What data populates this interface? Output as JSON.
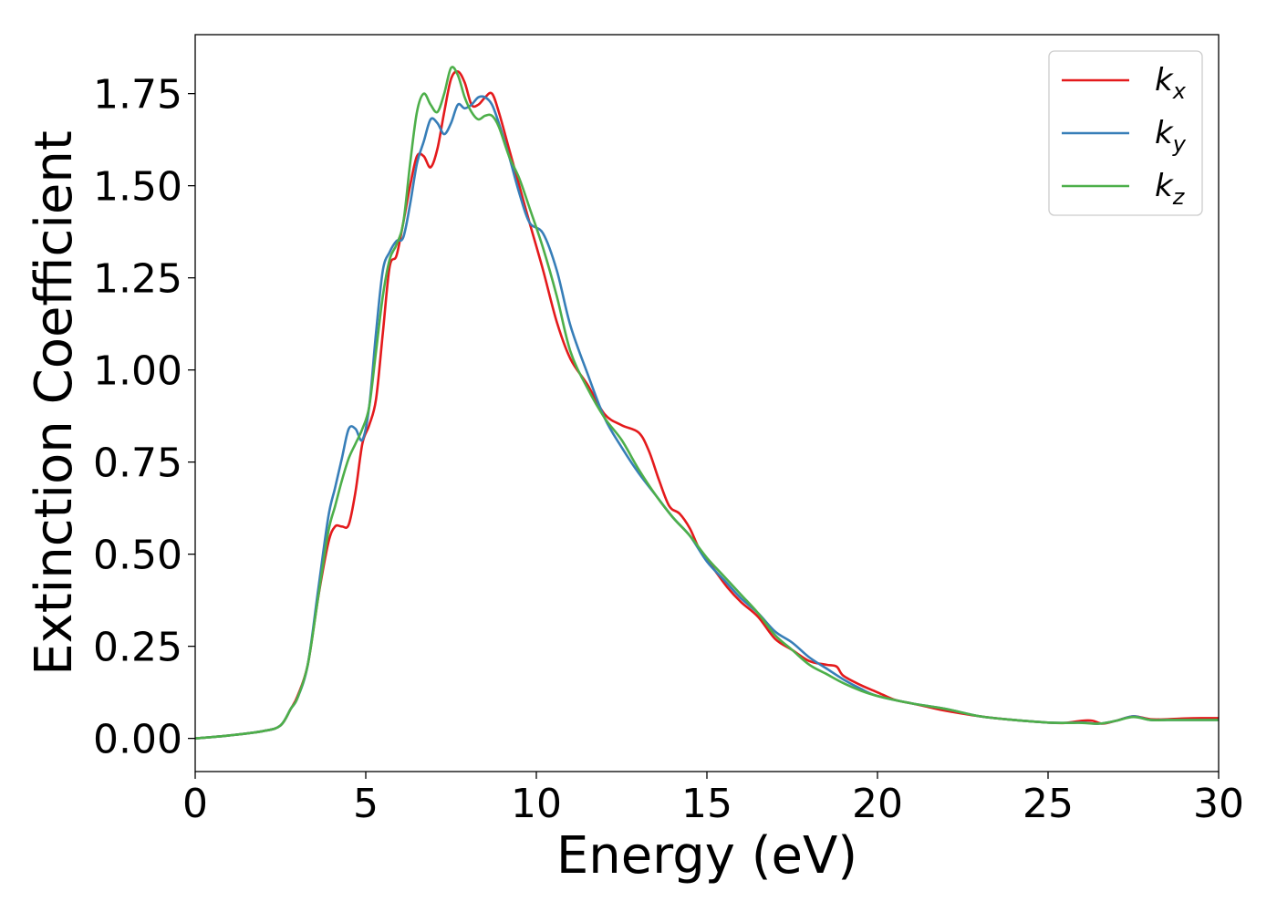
{
  "chart_data": {
    "type": "line",
    "xlabel": "Energy (eV)",
    "ylabel": "Extinction Coefficient",
    "xlim": [
      0,
      30
    ],
    "ylim": [
      -0.09,
      1.91
    ],
    "xticks": [
      0,
      5,
      10,
      15,
      20,
      25,
      30
    ],
    "xtick_labels": [
      "0",
      "5",
      "10",
      "15",
      "20",
      "25",
      "30"
    ],
    "yticks": [
      0.0,
      0.25,
      0.5,
      0.75,
      1.0,
      1.25,
      1.5,
      1.75
    ],
    "ytick_labels": [
      "0.00",
      "0.25",
      "0.50",
      "0.75",
      "1.00",
      "1.25",
      "1.50",
      "1.75"
    ],
    "grid": false,
    "legend_position": "top-right",
    "series": [
      {
        "name": "k_x",
        "legend_base": "k",
        "legend_sub": "x",
        "color": "#e41a1c",
        "x": [
          0,
          1,
          2,
          2.5,
          2.8,
          3.0,
          3.3,
          3.6,
          3.9,
          4.1,
          4.3,
          4.5,
          4.7,
          4.9,
          5.1,
          5.3,
          5.5,
          5.7,
          5.9,
          6.1,
          6.3,
          6.5,
          6.7,
          6.9,
          7.1,
          7.3,
          7.5,
          7.7,
          7.9,
          8.1,
          8.3,
          8.5,
          8.7,
          8.9,
          9.2,
          9.5,
          9.8,
          10.2,
          10.6,
          11.0,
          11.5,
          12.0,
          12.5,
          13.0,
          13.3,
          13.6,
          13.9,
          14.2,
          14.5,
          14.8,
          15.2,
          15.6,
          16.0,
          16.5,
          17.0,
          17.5,
          18.0,
          18.5,
          18.8,
          19.0,
          19.5,
          20.0,
          20.5,
          21.0,
          21.5,
          22.0,
          23.0,
          24.0,
          25.0,
          25.5,
          26.0,
          26.3,
          26.6,
          27.0,
          27.5,
          28.0,
          28.5,
          29.0,
          29.5,
          30.0
        ],
        "y": [
          0.0,
          0.008,
          0.02,
          0.035,
          0.08,
          0.115,
          0.2,
          0.38,
          0.53,
          0.575,
          0.575,
          0.58,
          0.67,
          0.8,
          0.85,
          0.92,
          1.1,
          1.28,
          1.31,
          1.4,
          1.5,
          1.58,
          1.58,
          1.55,
          1.6,
          1.7,
          1.79,
          1.81,
          1.78,
          1.72,
          1.72,
          1.74,
          1.75,
          1.7,
          1.6,
          1.5,
          1.4,
          1.27,
          1.13,
          1.03,
          0.96,
          0.88,
          0.85,
          0.83,
          0.78,
          0.7,
          0.63,
          0.61,
          0.57,
          0.51,
          0.46,
          0.41,
          0.37,
          0.33,
          0.27,
          0.24,
          0.21,
          0.2,
          0.195,
          0.17,
          0.145,
          0.125,
          0.105,
          0.095,
          0.085,
          0.075,
          0.06,
          0.05,
          0.043,
          0.042,
          0.048,
          0.048,
          0.04,
          0.048,
          0.06,
          0.052,
          0.052,
          0.054,
          0.055,
          0.055
        ]
      },
      {
        "name": "k_y",
        "legend_base": "k",
        "legend_sub": "y",
        "color": "#377eb8",
        "x": [
          0,
          1,
          2,
          2.5,
          2.8,
          3.0,
          3.3,
          3.6,
          3.9,
          4.1,
          4.3,
          4.5,
          4.7,
          4.9,
          5.1,
          5.3,
          5.5,
          5.7,
          5.9,
          6.1,
          6.3,
          6.5,
          6.7,
          6.9,
          7.1,
          7.3,
          7.5,
          7.7,
          7.9,
          8.1,
          8.3,
          8.5,
          8.7,
          8.9,
          9.2,
          9.5,
          9.8,
          10.2,
          10.6,
          11.0,
          11.5,
          12.0,
          12.5,
          13.0,
          13.5,
          14.0,
          14.5,
          15.0,
          15.5,
          16.0,
          16.5,
          17.0,
          17.5,
          18.0,
          18.5,
          19.0,
          19.5,
          20.0,
          21.0,
          22.0,
          23.0,
          24.0,
          25.0,
          25.5,
          26.0,
          26.5,
          27.0,
          27.5,
          28.0,
          28.5,
          29.0,
          29.5,
          30.0
        ],
        "y": [
          0.0,
          0.008,
          0.02,
          0.035,
          0.08,
          0.11,
          0.2,
          0.4,
          0.6,
          0.68,
          0.76,
          0.84,
          0.84,
          0.81,
          0.9,
          1.1,
          1.27,
          1.32,
          1.35,
          1.36,
          1.45,
          1.56,
          1.62,
          1.68,
          1.67,
          1.64,
          1.67,
          1.72,
          1.71,
          1.72,
          1.74,
          1.74,
          1.72,
          1.67,
          1.58,
          1.48,
          1.4,
          1.37,
          1.27,
          1.12,
          0.99,
          0.87,
          0.79,
          0.72,
          0.66,
          0.6,
          0.55,
          0.48,
          0.43,
          0.38,
          0.34,
          0.29,
          0.26,
          0.22,
          0.19,
          0.16,
          0.135,
          0.115,
          0.095,
          0.08,
          0.06,
          0.05,
          0.043,
          0.042,
          0.043,
          0.04,
          0.048,
          0.06,
          0.05,
          0.05,
          0.05,
          0.05,
          0.05
        ]
      },
      {
        "name": "k_z",
        "legend_base": "k",
        "legend_sub": "z",
        "color": "#4daf4a",
        "x": [
          0,
          1,
          2,
          2.5,
          2.8,
          3.0,
          3.3,
          3.6,
          3.9,
          4.1,
          4.3,
          4.5,
          4.7,
          4.9,
          5.1,
          5.3,
          5.5,
          5.7,
          5.9,
          6.1,
          6.3,
          6.5,
          6.7,
          6.9,
          7.1,
          7.3,
          7.5,
          7.7,
          7.9,
          8.1,
          8.3,
          8.5,
          8.7,
          8.9,
          9.2,
          9.5,
          9.8,
          10.2,
          10.6,
          11.0,
          11.5,
          12.0,
          12.5,
          13.0,
          13.5,
          14.0,
          14.5,
          15.0,
          15.5,
          16.0,
          16.5,
          17.0,
          17.5,
          18.0,
          18.5,
          19.0,
          19.5,
          20.0,
          21.0,
          22.0,
          23.0,
          24.0,
          25.0,
          25.5,
          26.0,
          26.5,
          27.0,
          27.5,
          28.0,
          28.5,
          29.0,
          29.5,
          30.0
        ],
        "y": [
          0.0,
          0.008,
          0.02,
          0.035,
          0.08,
          0.11,
          0.2,
          0.38,
          0.56,
          0.63,
          0.7,
          0.76,
          0.8,
          0.84,
          0.9,
          1.05,
          1.2,
          1.3,
          1.34,
          1.4,
          1.56,
          1.7,
          1.75,
          1.72,
          1.7,
          1.75,
          1.82,
          1.8,
          1.74,
          1.7,
          1.68,
          1.69,
          1.69,
          1.66,
          1.58,
          1.52,
          1.44,
          1.33,
          1.2,
          1.05,
          0.95,
          0.87,
          0.81,
          0.73,
          0.66,
          0.6,
          0.55,
          0.49,
          0.44,
          0.39,
          0.34,
          0.28,
          0.24,
          0.2,
          0.175,
          0.15,
          0.13,
          0.115,
          0.095,
          0.08,
          0.06,
          0.05,
          0.043,
          0.042,
          0.042,
          0.04,
          0.048,
          0.058,
          0.05,
          0.05,
          0.05,
          0.05,
          0.05
        ]
      }
    ]
  }
}
